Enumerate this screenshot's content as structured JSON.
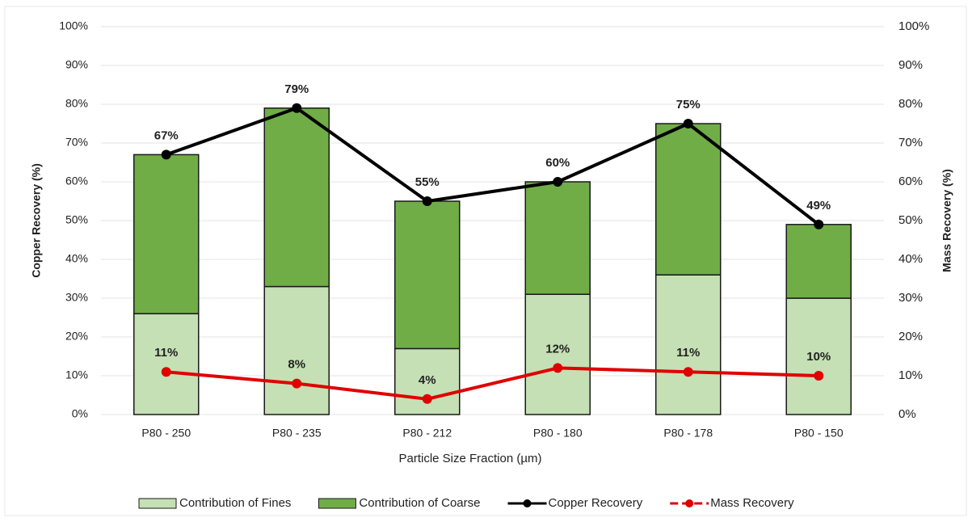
{
  "chart_data": {
    "type": "bar",
    "stacked": true,
    "categories": [
      "P80 - 250",
      "P80 - 235",
      "P80 - 212",
      "P80 - 180",
      "P80 - 178",
      "P80 - 150"
    ],
    "x_label": "Particle Size Fraction (µm)",
    "y_label": "Copper Recovery (%)",
    "y2_label": "Mass Recovery (%)",
    "series": [
      {
        "name": "Contribution of Fines",
        "type": "bar",
        "color": "#c5e0b4",
        "values": [
          26,
          33,
          17,
          31,
          36,
          30
        ]
      },
      {
        "name": "Contribution of Coarse",
        "type": "bar",
        "color": "#70ad47",
        "values": [
          41,
          46,
          38,
          29,
          39,
          19
        ]
      },
      {
        "name": "Copper Recovery",
        "type": "line",
        "color": "#000000",
        "values": [
          67,
          79,
          55,
          60,
          75,
          49
        ],
        "value_labels": [
          "67%",
          "79%",
          "55%",
          "60%",
          "75%",
          "49%"
        ]
      },
      {
        "name": "Mass Recovery",
        "type": "line",
        "axis": "y2",
        "color": "#e00000",
        "values": [
          11,
          8,
          4,
          12,
          11,
          10
        ],
        "value_labels": [
          "11%",
          "8%",
          "4%",
          "12%",
          "11%",
          "10%"
        ]
      }
    ],
    "ylim": [
      0,
      100
    ],
    "yticks": [
      {
        "value": 0,
        "label": "0%"
      },
      {
        "value": 10,
        "label": "10%"
      },
      {
        "value": 20,
        "label": "20%"
      },
      {
        "value": 30,
        "label": "30%"
      },
      {
        "value": 40,
        "label": "40%"
      },
      {
        "value": 50,
        "label": "50%"
      },
      {
        "value": 60,
        "label": "60%"
      },
      {
        "value": 70,
        "label": "70%"
      },
      {
        "value": 80,
        "label": "80%"
      },
      {
        "value": 90,
        "label": "90%"
      },
      {
        "value": 100,
        "label": "100%"
      }
    ],
    "y2lim": [
      0,
      100
    ],
    "y2ticks": [
      {
        "value": 0,
        "label": "0%"
      },
      {
        "value": 10,
        "label": "10%"
      },
      {
        "value": 20,
        "label": "20%"
      },
      {
        "value": 30,
        "label": "30%"
      },
      {
        "value": 40,
        "label": "40%"
      },
      {
        "value": 50,
        "label": "50%"
      },
      {
        "value": 60,
        "label": "60%"
      },
      {
        "value": 70,
        "label": "70%"
      },
      {
        "value": 80,
        "label": "80%"
      },
      {
        "value": 90,
        "label": "90%"
      },
      {
        "value": 100,
        "label": "100%"
      }
    ],
    "y2_color": "#e00000",
    "grid": true,
    "legend": "bottom"
  }
}
